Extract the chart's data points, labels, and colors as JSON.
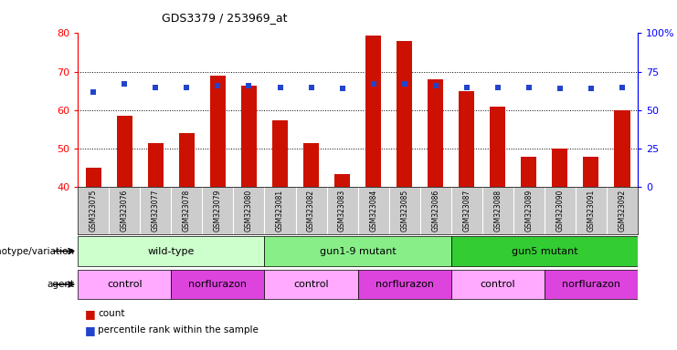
{
  "title": "GDS3379 / 253969_at",
  "samples": [
    "GSM323075",
    "GSM323076",
    "GSM323077",
    "GSM323078",
    "GSM323079",
    "GSM323080",
    "GSM323081",
    "GSM323082",
    "GSM323083",
    "GSM323084",
    "GSM323085",
    "GSM323086",
    "GSM323087",
    "GSM323088",
    "GSM323089",
    "GSM323090",
    "GSM323091",
    "GSM323092"
  ],
  "bar_values": [
    45.0,
    58.5,
    51.5,
    54.0,
    69.0,
    66.5,
    57.5,
    51.5,
    43.5,
    79.5,
    78.0,
    68.0,
    65.0,
    61.0,
    48.0,
    50.0,
    48.0,
    60.0
  ],
  "dot_values_pct": [
    62,
    67,
    65,
    65,
    66,
    66,
    65,
    65,
    64,
    67,
    67,
    66,
    65,
    65,
    65,
    64,
    64,
    65
  ],
  "bar_bottom": 40,
  "ylim_left": [
    40,
    80
  ],
  "ylim_right": [
    0,
    100
  ],
  "yticks_left": [
    40,
    50,
    60,
    70,
    80
  ],
  "yticks_right": [
    0,
    25,
    50,
    75,
    100
  ],
  "bar_color": "#cc1100",
  "dot_color": "#2244cc",
  "genotype_groups": [
    {
      "label": "wild-type",
      "start": 0,
      "end": 6,
      "color": "#ccffcc"
    },
    {
      "label": "gun1-9 mutant",
      "start": 6,
      "end": 12,
      "color": "#88ee88"
    },
    {
      "label": "gun5 mutant",
      "start": 12,
      "end": 18,
      "color": "#33cc33"
    }
  ],
  "agent_groups": [
    {
      "label": "control",
      "start": 0,
      "end": 3,
      "color": "#ffaaff"
    },
    {
      "label": "norflurazon",
      "start": 3,
      "end": 6,
      "color": "#dd44dd"
    },
    {
      "label": "control",
      "start": 6,
      "end": 9,
      "color": "#ffaaff"
    },
    {
      "label": "norflurazon",
      "start": 9,
      "end": 12,
      "color": "#dd44dd"
    },
    {
      "label": "control",
      "start": 12,
      "end": 15,
      "color": "#ffaaff"
    },
    {
      "label": "norflurazon",
      "start": 15,
      "end": 18,
      "color": "#dd44dd"
    }
  ],
  "label_genotype": "genotype/variation",
  "label_agent": "agent",
  "legend_bar": "count",
  "legend_dot": "percentile rank within the sample",
  "tick_bg_color": "#cccccc"
}
